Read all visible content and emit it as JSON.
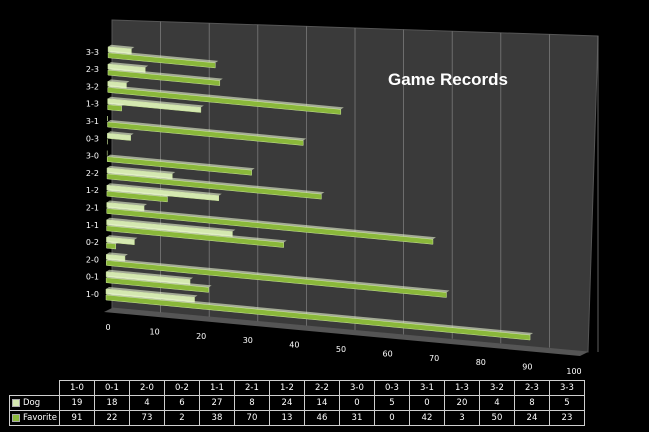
{
  "chart_data": {
    "type": "bar",
    "orientation": "horizontal",
    "three_d": true,
    "title": "Game Records",
    "categories": [
      "1-0",
      "0-1",
      "2-0",
      "0-2",
      "1-1",
      "2-1",
      "1-2",
      "2-2",
      "3-0",
      "0-3",
      "3-1",
      "1-3",
      "3-2",
      "2-3",
      "3-3"
    ],
    "series": [
      {
        "name": "Dog",
        "values": [
          19,
          18,
          4,
          6,
          27,
          8,
          24,
          14,
          0,
          5,
          0,
          20,
          4,
          8,
          5
        ],
        "color": "#d4e8b0"
      },
      {
        "name": "Favorite",
        "values": [
          91,
          22,
          73,
          2,
          38,
          70,
          13,
          46,
          31,
          0,
          42,
          3,
          50,
          24,
          23
        ],
        "color": "#8ab83a"
      }
    ],
    "xticks": [
      "0",
      "10",
      "20",
      "30",
      "40",
      "50",
      "60",
      "70",
      "80",
      "90",
      "100"
    ],
    "xlim": [
      0,
      100
    ],
    "grid": true,
    "legend": "data-table"
  }
}
